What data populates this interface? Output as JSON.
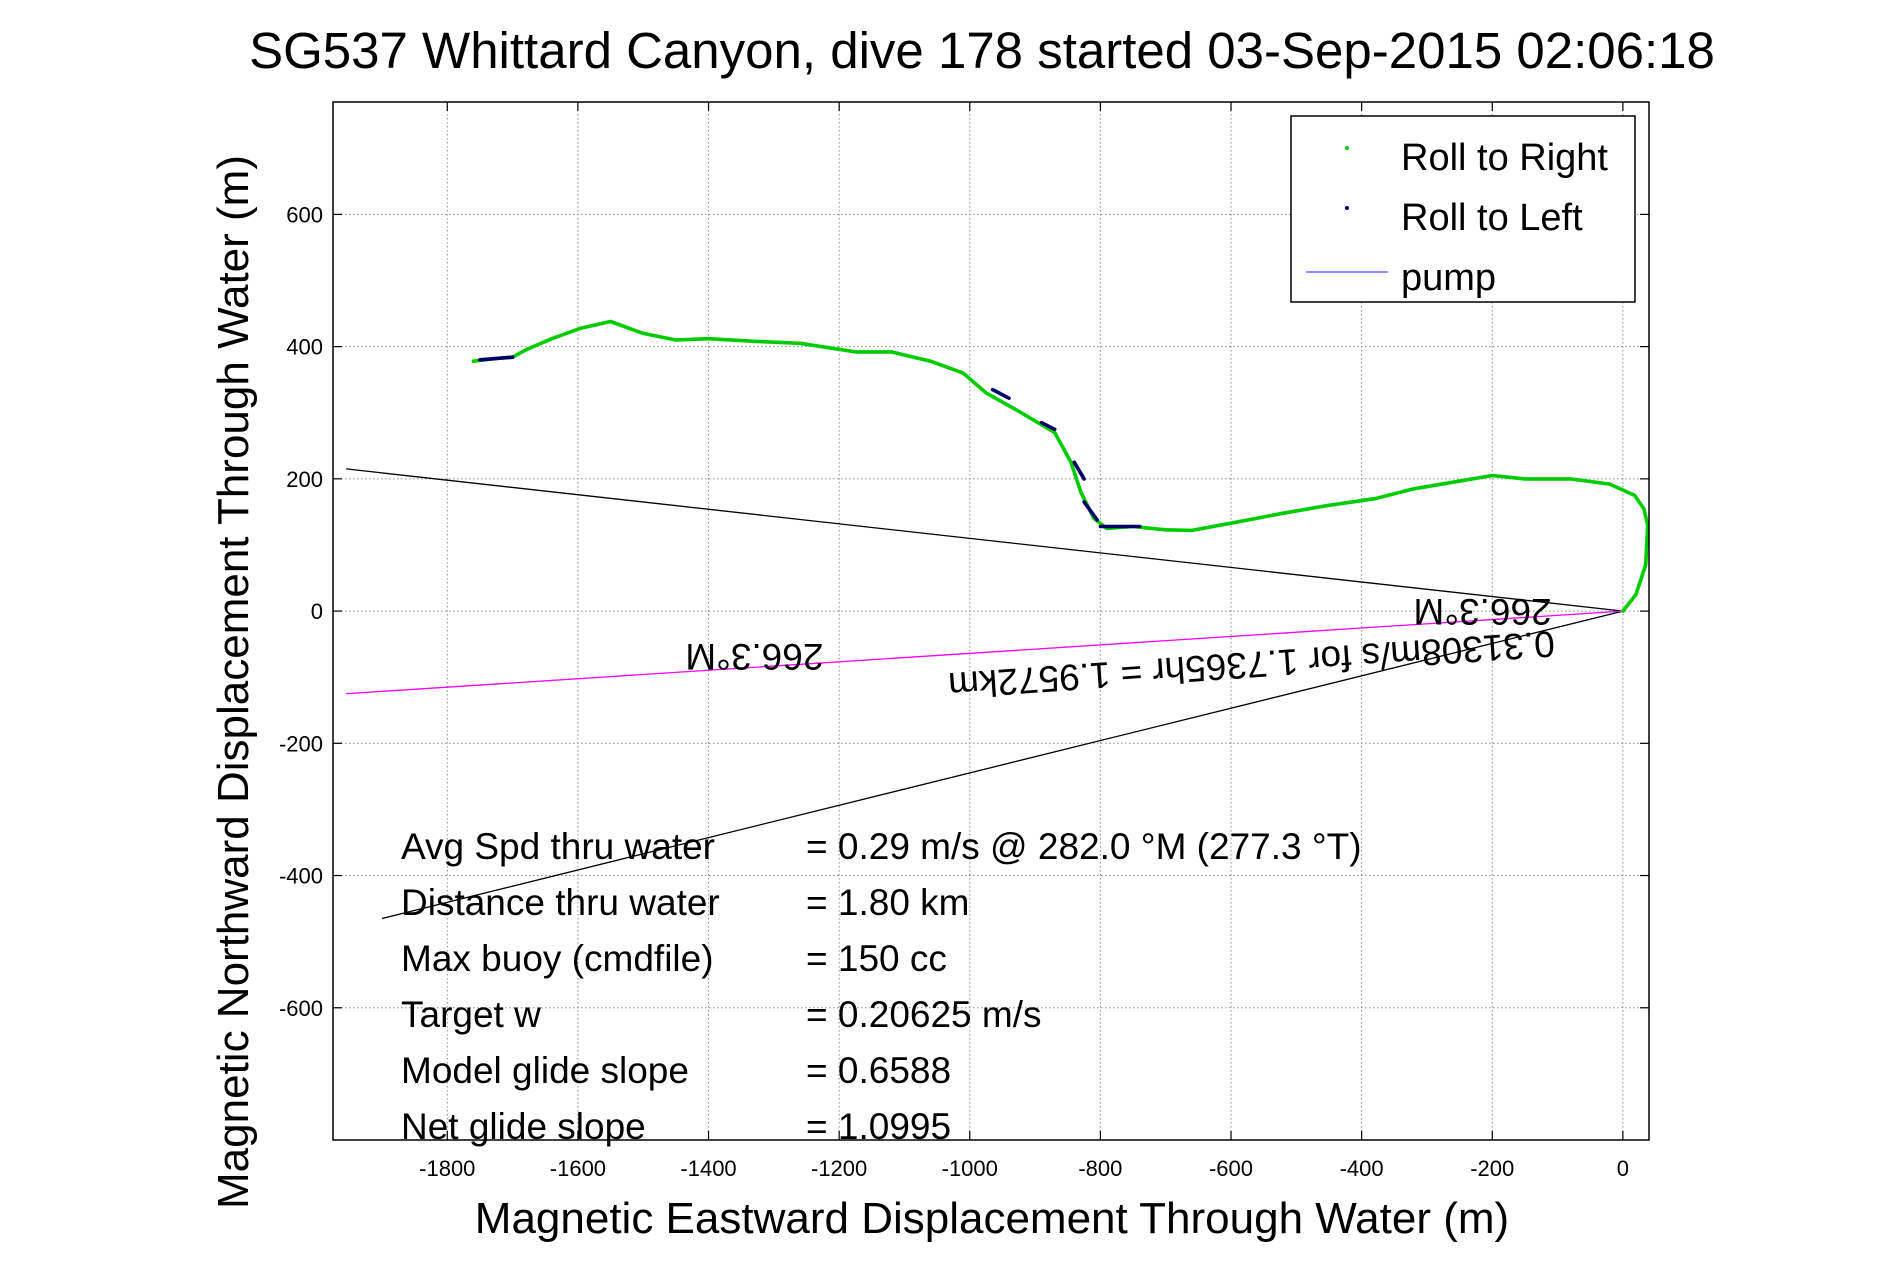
{
  "chart_data": {
    "type": "line",
    "title": "SG537 Whittard Canyon, dive 178 started 03-Sep-2015 02:06:18",
    "xlabel": "Magnetic Eastward Displacement Through Water (m)",
    "ylabel": "Magnetic Northward Displacement Through Water (m)",
    "xlim": [
      -1975,
      40
    ],
    "ylim": [
      -800,
      770
    ],
    "xticks": [
      -1800,
      -1600,
      -1400,
      -1200,
      -1000,
      -800,
      -600,
      -400,
      -200,
      0
    ],
    "yticks": [
      -600,
      -400,
      -200,
      0,
      200,
      400,
      600
    ],
    "grid": true,
    "legend_position": "top-right",
    "legend": [
      {
        "name": "Roll to Right",
        "color": "#00cc00",
        "style": "point"
      },
      {
        "name": "Roll to Left",
        "color": "#000066",
        "style": "point"
      },
      {
        "name": "pump",
        "color": "#6b6bff",
        "style": "line"
      }
    ],
    "track": {
      "color": "#00cc00",
      "points": [
        [
          0,
          0
        ],
        [
          20,
          25
        ],
        [
          35,
          70
        ],
        [
          38,
          130
        ],
        [
          32,
          155
        ],
        [
          18,
          175
        ],
        [
          -20,
          192
        ],
        [
          -80,
          200
        ],
        [
          -150,
          200
        ],
        [
          -200,
          205
        ],
        [
          -260,
          195
        ],
        [
          -320,
          185
        ],
        [
          -380,
          170
        ],
        [
          -450,
          160
        ],
        [
          -520,
          148
        ],
        [
          -600,
          133
        ],
        [
          -660,
          122
        ],
        [
          -700,
          123
        ],
        [
          -750,
          128
        ],
        [
          -790,
          125
        ],
        [
          -810,
          140
        ],
        [
          -830,
          180
        ],
        [
          -845,
          225
        ],
        [
          -870,
          270
        ],
        [
          -930,
          305
        ],
        [
          -975,
          330
        ],
        [
          -1010,
          360
        ],
        [
          -1060,
          378
        ],
        [
          -1120,
          392
        ],
        [
          -1175,
          392
        ],
        [
          -1260,
          405
        ],
        [
          -1330,
          408
        ],
        [
          -1400,
          412
        ],
        [
          -1450,
          410
        ],
        [
          -1500,
          420
        ],
        [
          -1550,
          438
        ],
        [
          -1595,
          428
        ],
        [
          -1640,
          412
        ],
        [
          -1680,
          395
        ],
        [
          -1700,
          384
        ],
        [
          -1725,
          382
        ],
        [
          -1760,
          378
        ]
      ],
      "roll_left_segments": [
        [
          [
            -1750,
            380
          ],
          [
            -1700,
            384
          ]
        ],
        [
          [
            -965,
            335
          ],
          [
            -940,
            322
          ]
        ],
        [
          [
            -890,
            285
          ],
          [
            -870,
            275
          ]
        ],
        [
          [
            -840,
            225
          ],
          [
            -825,
            200
          ]
        ],
        [
          [
            -825,
            165
          ],
          [
            -805,
            138
          ]
        ],
        [
          [
            -800,
            128
          ],
          [
            -740,
            128
          ]
        ]
      ]
    },
    "lines": [
      {
        "name": "bound-upper",
        "color": "#000000",
        "points": [
          [
            0,
            0
          ],
          [
            -1955,
            215
          ]
        ]
      },
      {
        "name": "bound-lower",
        "color": "#000000",
        "points": [
          [
            0,
            0
          ],
          [
            -1900,
            -465
          ]
        ]
      },
      {
        "name": "heading-magenta",
        "color": "#ff00ff",
        "points": [
          [
            0,
            0
          ],
          [
            -1955,
            -125
          ]
        ]
      }
    ],
    "annotations": [
      {
        "text": "266.3°M",
        "x": -1330,
        "y": -50,
        "rotation_deg": 180
      },
      {
        "text": "266.3°M",
        "x": -215,
        "y": 18,
        "rotation_deg": 180
      },
      {
        "text": "0.31308m/s for 1.7365hr = 1.9572km",
        "x": -570,
        "y": -62,
        "rotation_deg": 176
      }
    ],
    "stats": [
      {
        "label": "Avg Spd thru water",
        "value": "=  0.29 m/s @ 282.0 °M (277.3 °T)"
      },
      {
        "label": "Distance thru water",
        "value": "=  1.80 km"
      },
      {
        "label": "Max buoy (cmdfile)",
        "value": "= 150 cc"
      },
      {
        "label": "Target w",
        "value": "= 0.20625 m/s"
      },
      {
        "label": "Model glide slope",
        "value": "= 0.6588"
      },
      {
        "label": "Net glide slope",
        "value": "= 1.0995"
      }
    ]
  }
}
